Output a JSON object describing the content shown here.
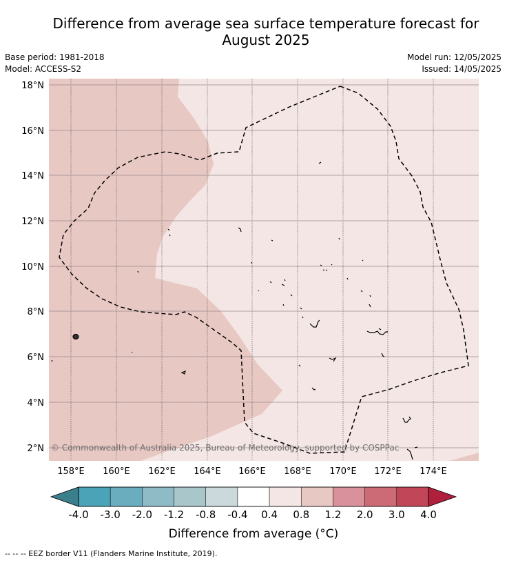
{
  "title_line1": "Difference from average sea surface temperature forecast for",
  "title_line2": "August 2025",
  "base_period": "Base period: 1981-2018",
  "model": "Model: ACCESS-S2",
  "model_run": "Model run: 12/05/2025",
  "issued": "Issued: 14/05/2025",
  "copyright": "© Commonwealth of Australia 2025, Bureau of Meteorology, supported by COSPPac",
  "lon_labels": [
    "158°E",
    "160°E",
    "162°E",
    "164°E",
    "166°E",
    "168°E",
    "170°E",
    "172°E",
    "174°E"
  ],
  "lat_labels": [
    "18°N",
    "16°N",
    "14°N",
    "12°N",
    "10°N",
    "8°N",
    "6°N",
    "4°N",
    "2°N"
  ],
  "colorbar": {
    "label": "Difference from average (°C)",
    "ticks": [
      "-4.0",
      "-3.0",
      "-2.0",
      "-1.2",
      "-0.8",
      "-0.4",
      "0.4",
      "0.8",
      "1.2",
      "2.0",
      "3.0",
      "4.0"
    ],
    "colors": [
      "#4aa3b6",
      "#69adbe",
      "#8ebbc6",
      "#a9c7cb",
      "#cbd9dc",
      "#ffffff",
      "#f4e6e5",
      "#e8c8c3",
      "#d9929b",
      "#cc6a76",
      "#c14658"
    ],
    "under_color": "#3b7f8c",
    "over_color": "#b0203d"
  },
  "footnote": "-- -- -- EEZ border V11 (Flanders Marine Institute, 2019)."
}
